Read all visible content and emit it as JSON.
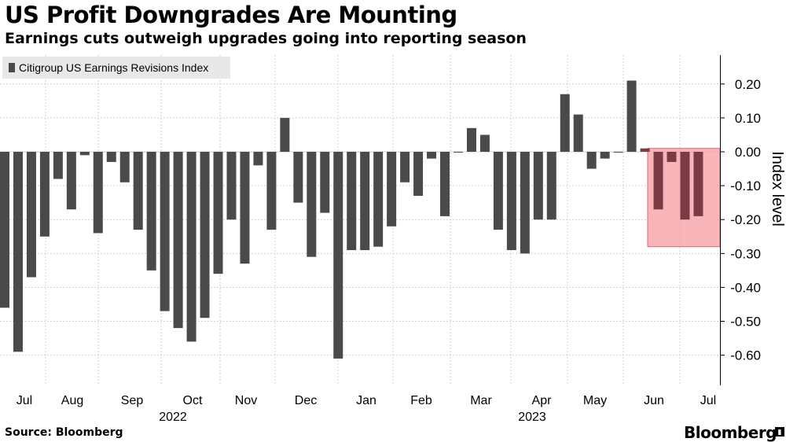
{
  "title": "US Profit Downgrades Are Mounting",
  "subtitle": "Earnings cuts outweigh upgrades going into reporting season",
  "source": "Source: Bloomberg",
  "brand": "Bloomberg",
  "colors": {
    "bar": "#4a4a4a",
    "highlight_fill": "#f7a8ae",
    "highlight_stroke": "#e0666f",
    "grid": "#cfcfcf"
  },
  "chart_data": {
    "type": "bar",
    "title": "US Profit Downgrades Are Mounting",
    "subtitle": "Earnings cuts outweigh upgrades going into reporting season",
    "legend": "Citigroup US Earnings Revisions Index",
    "legend_position": "top-left",
    "xlabel": "",
    "ylabel": "Index level",
    "ylim": [
      -0.7,
      0.3
    ],
    "yticks": [
      0.2,
      0.1,
      0.0,
      -0.1,
      -0.2,
      -0.3,
      -0.4,
      -0.5,
      -0.6
    ],
    "ytick_labels": [
      "0.20",
      "0.10",
      "0.00",
      "-0.10",
      "-0.20",
      "-0.30",
      "-0.40",
      "-0.50",
      "-0.60"
    ],
    "x_month_labels": [
      "Jul",
      "Aug",
      "Sep",
      "Oct",
      "Nov",
      "Dec",
      "Jan",
      "Feb",
      "Mar",
      "Apr",
      "May",
      "Jun",
      "Jul"
    ],
    "x_year_labels": [
      "2022",
      "2023"
    ],
    "grid": true,
    "series": [
      {
        "name": "Citigroup US Earnings Revisions Index",
        "values": [
          -0.46,
          -0.59,
          -0.37,
          -0.25,
          -0.08,
          -0.17,
          -0.01,
          -0.24,
          -0.03,
          -0.09,
          -0.23,
          -0.35,
          -0.47,
          -0.52,
          -0.56,
          -0.49,
          -0.36,
          -0.2,
          -0.33,
          -0.04,
          -0.23,
          0.1,
          -0.15,
          -0.31,
          -0.18,
          -0.61,
          -0.29,
          -0.29,
          -0.28,
          -0.22,
          -0.09,
          -0.13,
          -0.02,
          -0.19,
          0.0,
          0.07,
          0.05,
          -0.23,
          -0.29,
          -0.3,
          -0.2,
          -0.2,
          0.17,
          0.11,
          -0.05,
          -0.02,
          0.0,
          0.21,
          0.01,
          -0.17,
          -0.03,
          -0.2,
          -0.19
        ]
      }
    ],
    "highlight_annotation": {
      "from_index": 48,
      "to_index": 52,
      "y_range": [
        -0.28,
        0.01
      ]
    }
  }
}
